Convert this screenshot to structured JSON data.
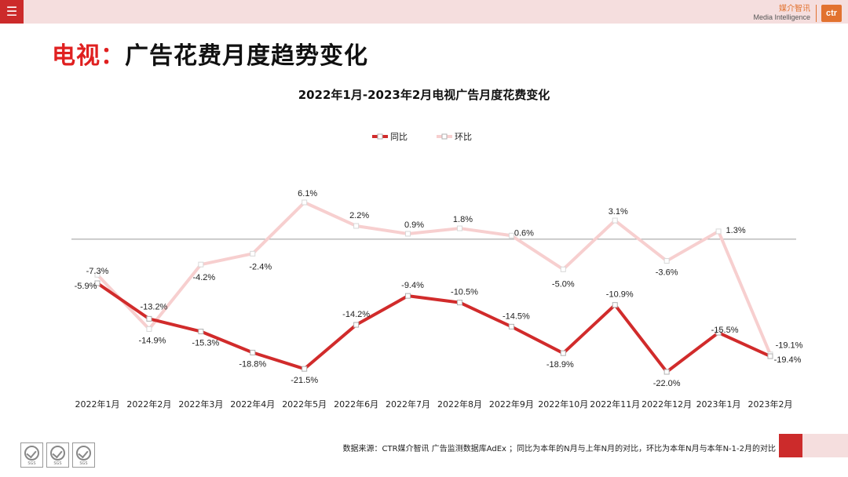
{
  "header": {
    "menu_icon": "hamburger-icon",
    "brand_cn": "媒介智讯",
    "brand_en": "Media Intelligence",
    "brand_logo": "ctr"
  },
  "page": {
    "title_prefix": "电视：",
    "title_rest": "广告花费月度趋势变化"
  },
  "chart_data": {
    "type": "line",
    "title": "2022年1月-2023年2月电视广告月度花费变化",
    "categories": [
      "2022年1月",
      "2022年2月",
      "2022年3月",
      "2022年4月",
      "2022年5月",
      "2022年6月",
      "2022年7月",
      "2022年8月",
      "2022年9月",
      "2022年10月",
      "2022年11月",
      "2022年12月",
      "2023年1月",
      "2023年2月"
    ],
    "series": [
      {
        "name": "同比",
        "color": "#d12b2b",
        "values": [
          -7.3,
          -13.2,
          -15.3,
          -18.8,
          -21.5,
          -14.2,
          -9.4,
          -10.5,
          -14.5,
          -18.9,
          -10.9,
          -22.0,
          -15.5,
          -19.4
        ],
        "labels": [
          "-7.3%",
          "-13.2%",
          "-15.3%",
          "-18.8%",
          "-21.5%",
          "-14.2%",
          "-9.4%",
          "-10.5%",
          "-14.5%",
          "-18.9%",
          "-10.9%",
          "-22.0%",
          "-15.5%",
          "-19.4%"
        ]
      },
      {
        "name": "环比",
        "color": "#f7cfcf",
        "values": [
          -5.9,
          -14.9,
          -4.2,
          -2.4,
          6.1,
          2.2,
          0.9,
          1.8,
          0.6,
          -5.0,
          3.1,
          -3.6,
          1.3,
          -19.1
        ],
        "labels": [
          "-5.9%",
          "-14.9%",
          "-4.2%",
          "-2.4%",
          "6.1%",
          "2.2%",
          "0.9%",
          "1.8%",
          "0.6%",
          "-5.0%",
          "3.1%",
          "-3.6%",
          "1.3%",
          "-19.1%"
        ]
      }
    ],
    "ylim": [
      -25,
      10
    ],
    "zero_line": true,
    "legend_position": "top-center",
    "grid": false
  },
  "footer": {
    "note": "数据来源：CTR媒介智讯 广告监测数据库AdEx ；同比为本年的N月与上年N月的对比，环比为本年N月与本年N-1-2月的对比",
    "cert_badge": "SGS"
  }
}
